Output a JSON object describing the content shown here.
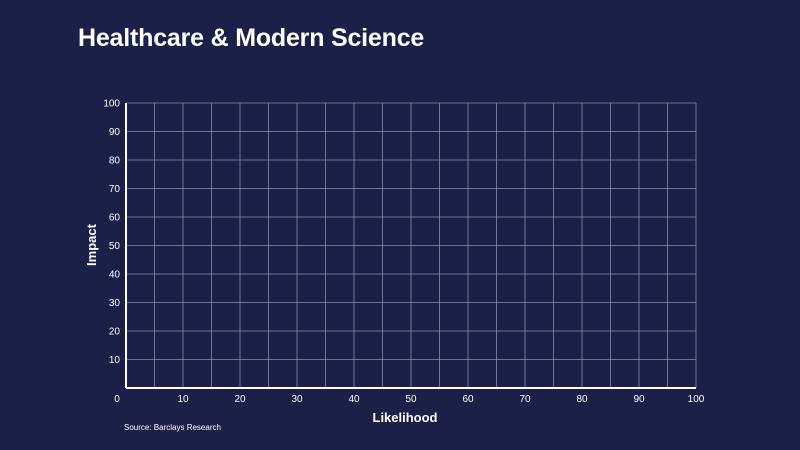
{
  "page": {
    "title": "Healthcare & Modern Science",
    "source": "Source: Barclays Research"
  },
  "colors": {
    "background": "#1b2048",
    "grid": "#8a8fa8",
    "axis": "#ffffff",
    "text": "#ffffff"
  },
  "chart_data": {
    "type": "scatter",
    "title": "Healthcare & Modern Science",
    "xlabel": "Likelihood",
    "ylabel": "Impact",
    "xlim": [
      0,
      100
    ],
    "ylim": [
      0,
      100
    ],
    "x_ticks": [
      0,
      10,
      20,
      30,
      40,
      50,
      60,
      70,
      80,
      90,
      100
    ],
    "y_ticks": [
      10,
      20,
      30,
      40,
      50,
      60,
      70,
      80,
      90,
      100
    ],
    "x_grid_step": 5,
    "y_grid_step": 10,
    "grid": true,
    "series": []
  }
}
